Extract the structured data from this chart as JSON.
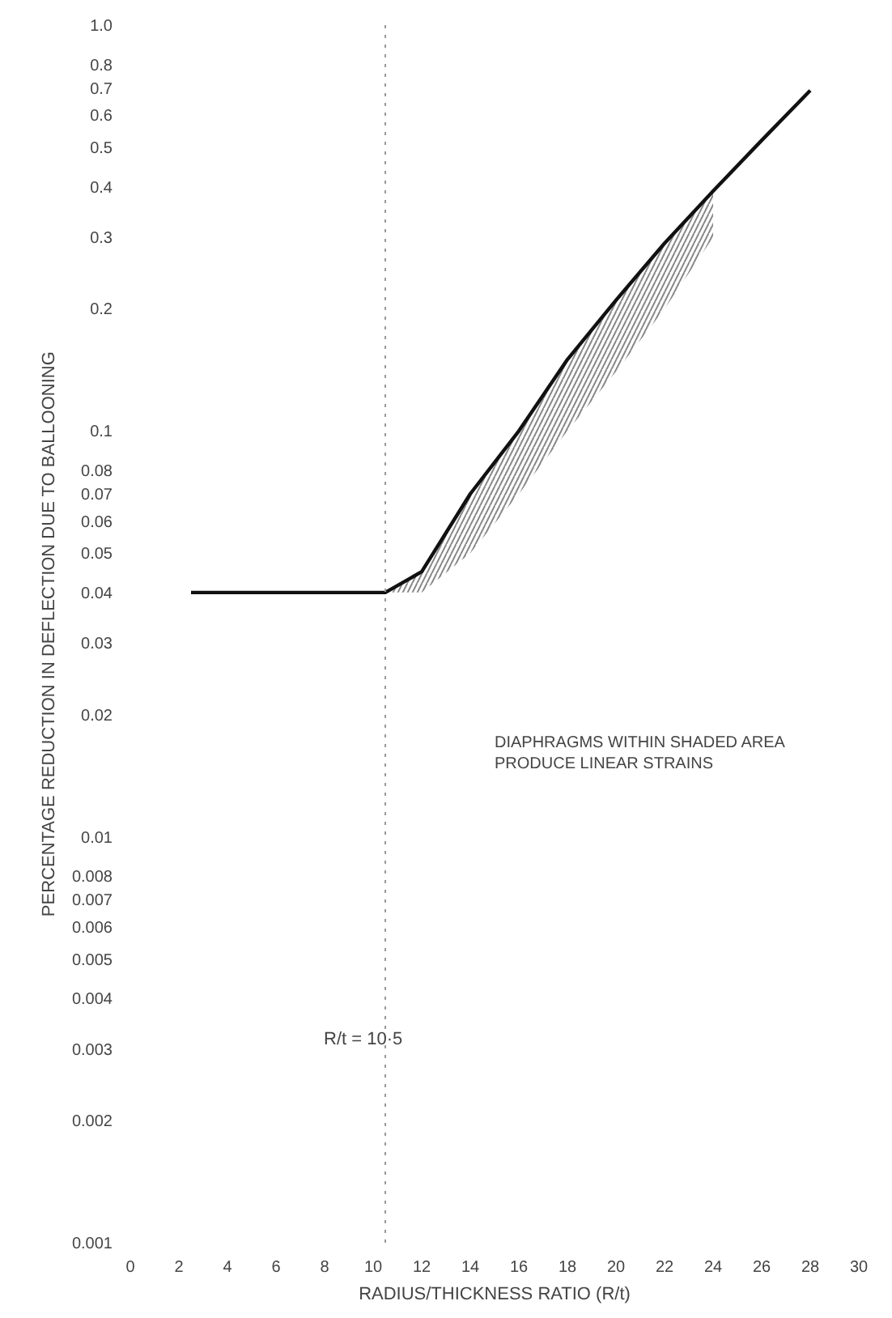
{
  "chart_data": {
    "type": "line",
    "xlabel": "RADIUS/THICKNESS RATIO (R/t)",
    "ylabel": "PERCENTAGE REDUCTION IN DEFLECTION DUE TO BALLOONING",
    "log": "y",
    "grid": false,
    "marker": "none",
    "line_style": "solid",
    "xlim": [
      0,
      30
    ],
    "xticks": [
      0,
      2,
      4,
      6,
      8,
      10,
      12,
      14,
      16,
      18,
      20,
      22,
      24,
      26,
      28,
      30
    ],
    "ylim": [
      0.001,
      1.0
    ],
    "yticks": [
      0.001,
      0.002,
      0.003,
      0.004,
      0.005,
      0.006,
      0.007,
      0.008,
      0.01,
      0.02,
      0.03,
      0.04,
      0.05,
      0.06,
      0.07,
      0.08,
      0.1,
      0.2,
      0.3,
      0.4,
      0.5,
      0.6,
      0.7,
      0.8,
      {
        "value": 1,
        "label": "1.0"
      }
    ],
    "series": [
      {
        "color": "#111111",
        "x": [
          2.5,
          10.5,
          12,
          14,
          16,
          18,
          20,
          22,
          24,
          26,
          28
        ],
        "values": [
          0.04,
          0.04,
          0.045,
          0.07,
          0.1,
          0.15,
          0.21,
          0.29,
          0.39,
          0.52,
          0.69
        ],
        "lower": [
          null,
          0.04,
          0.04,
          0.05,
          0.07,
          0.1,
          0.14,
          0.2,
          0.3,
          null,
          null
        ],
        "upper": [
          null,
          0.04,
          0.045,
          0.07,
          0.1,
          0.15,
          0.21,
          0.29,
          0.39,
          null,
          null
        ]
      }
    ],
    "ref_lines": [
      {
        "axis": "x",
        "value": 10.5,
        "label": "R/t = 10·5",
        "color": "#999999",
        "line_style": "dotted"
      }
    ],
    "annotations": [
      "DIAPHRAGMS WITHIN SHADED AREA PRODUCE LINEAR STRAINS"
    ]
  }
}
